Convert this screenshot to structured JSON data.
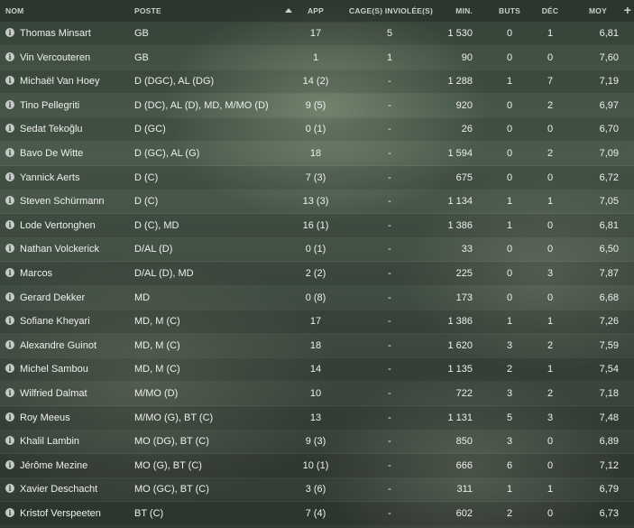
{
  "header": {
    "name": "NOM",
    "position": "POSTE",
    "app": "APP",
    "clean_sheets": "CAGE(S) INVIOLÉE(S)",
    "minutes": "MIN.",
    "goals": "BUTS",
    "decisive": "DÉC",
    "rating": "MOY",
    "add": "+"
  },
  "rows": [
    {
      "name": "Thomas Minsart",
      "pos": "GB",
      "app": "17",
      "cs": "5",
      "min": "1 530",
      "buts": "0",
      "dec": "1",
      "moy": "6,81"
    },
    {
      "name": "Vin Vercouteren",
      "pos": "GB",
      "app": "1",
      "cs": "1",
      "min": "90",
      "buts": "0",
      "dec": "0",
      "moy": "7,60"
    },
    {
      "name": "Michaël Van Hoey",
      "pos": "D (DGC), AL (DG)",
      "app": "14 (2)",
      "cs": "-",
      "min": "1 288",
      "buts": "1",
      "dec": "7",
      "moy": "7,19"
    },
    {
      "name": "Tino Pellegriti",
      "pos": "D (DC), AL (D), MD, M/MO (D)",
      "app": "9 (5)",
      "cs": "-",
      "min": "920",
      "buts": "0",
      "dec": "2",
      "moy": "6,97"
    },
    {
      "name": "Sedat Tekoğlu",
      "pos": "D (GC)",
      "app": "0 (1)",
      "cs": "-",
      "min": "26",
      "buts": "0",
      "dec": "0",
      "moy": "6,70"
    },
    {
      "name": "Bavo De Witte",
      "pos": "D (GC), AL (G)",
      "app": "18",
      "cs": "-",
      "min": "1 594",
      "buts": "0",
      "dec": "2",
      "moy": "7,09"
    },
    {
      "name": "Yannick Aerts",
      "pos": "D (C)",
      "app": "7 (3)",
      "cs": "-",
      "min": "675",
      "buts": "0",
      "dec": "0",
      "moy": "6,72"
    },
    {
      "name": "Steven Schürmann",
      "pos": "D (C)",
      "app": "13 (3)",
      "cs": "-",
      "min": "1 134",
      "buts": "1",
      "dec": "1",
      "moy": "7,05"
    },
    {
      "name": "Lode Vertonghen",
      "pos": "D (C), MD",
      "app": "16 (1)",
      "cs": "-",
      "min": "1 386",
      "buts": "1",
      "dec": "0",
      "moy": "6,81"
    },
    {
      "name": "Nathan Volckerick",
      "pos": "D/AL (D)",
      "app": "0 (1)",
      "cs": "-",
      "min": "33",
      "buts": "0",
      "dec": "0",
      "moy": "6,50"
    },
    {
      "name": "Marcos",
      "pos": "D/AL (D), MD",
      "app": "2 (2)",
      "cs": "-",
      "min": "225",
      "buts": "0",
      "dec": "3",
      "moy": "7,87"
    },
    {
      "name": "Gerard Dekker",
      "pos": "MD",
      "app": "0 (8)",
      "cs": "-",
      "min": "173",
      "buts": "0",
      "dec": "0",
      "moy": "6,68"
    },
    {
      "name": "Sofiane Kheyari",
      "pos": "MD, M (C)",
      "app": "17",
      "cs": "-",
      "min": "1 386",
      "buts": "1",
      "dec": "1",
      "moy": "7,26"
    },
    {
      "name": "Alexandre Guinot",
      "pos": "MD, M (C)",
      "app": "18",
      "cs": "-",
      "min": "1 620",
      "buts": "3",
      "dec": "2",
      "moy": "7,59"
    },
    {
      "name": "Michel Sambou",
      "pos": "MD, M (C)",
      "app": "14",
      "cs": "-",
      "min": "1 135",
      "buts": "2",
      "dec": "1",
      "moy": "7,54"
    },
    {
      "name": "Wilfried Dalmat",
      "pos": "M/MO (D)",
      "app": "10",
      "cs": "-",
      "min": "722",
      "buts": "3",
      "dec": "2",
      "moy": "7,18"
    },
    {
      "name": "Roy Meeus",
      "pos": "M/MO (G), BT (C)",
      "app": "13",
      "cs": "-",
      "min": "1 131",
      "buts": "5",
      "dec": "3",
      "moy": "7,48"
    },
    {
      "name": "Khalil Lambin",
      "pos": "MO (DG), BT (C)",
      "app": "9 (3)",
      "cs": "-",
      "min": "850",
      "buts": "3",
      "dec": "0",
      "moy": "6,89"
    },
    {
      "name": "Jérôme Mezine",
      "pos": "MO (G), BT (C)",
      "app": "10 (1)",
      "cs": "-",
      "min": "666",
      "buts": "6",
      "dec": "0",
      "moy": "7,12"
    },
    {
      "name": "Xavier Deschacht",
      "pos": "MO (GC), BT (C)",
      "app": "3 (6)",
      "cs": "-",
      "min": "311",
      "buts": "1",
      "dec": "1",
      "moy": "6,79"
    },
    {
      "name": "Kristof Verspeeten",
      "pos": "BT (C)",
      "app": "7 (4)",
      "cs": "-",
      "min": "602",
      "buts": "2",
      "dec": "0",
      "moy": "6,73"
    }
  ],
  "icons": {
    "row_info": "info-icon",
    "sort": "sort-ascending-icon",
    "add_column": "plus-icon"
  }
}
